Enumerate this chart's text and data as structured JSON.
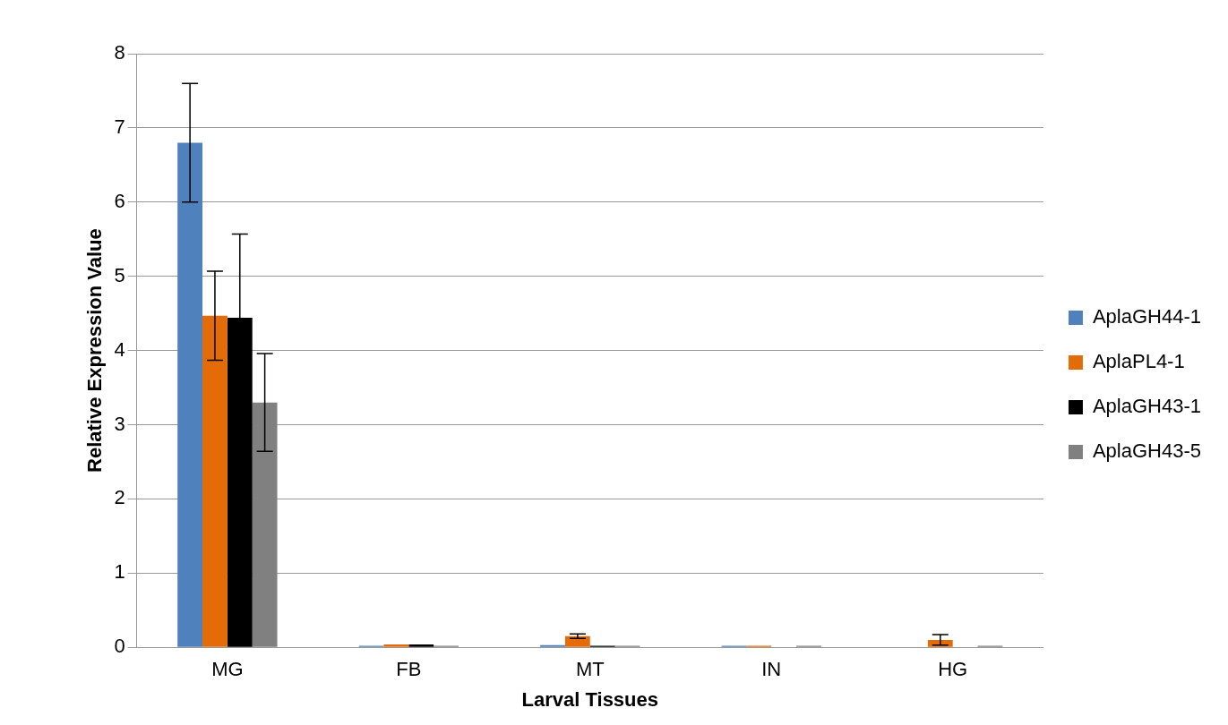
{
  "chart_data": {
    "type": "bar",
    "xlabel": "Larval Tissues",
    "ylabel": "Relative Expression Value",
    "categories": [
      "MG",
      "FB",
      "MT",
      "IN",
      "HG"
    ],
    "series": [
      {
        "name": "AplaGH44-1",
        "color": "#4f81bd",
        "values": [
          6.8,
          0.02,
          0.03,
          0.02,
          0
        ],
        "errors": [
          0.8,
          null,
          null,
          null,
          null
        ]
      },
      {
        "name": "AplaPL4-1",
        "color": "#e36c09",
        "values": [
          4.47,
          0.04,
          0.15,
          0.02,
          0.1
        ],
        "errors": [
          0.6,
          null,
          0.03,
          null,
          0.07
        ]
      },
      {
        "name": "AplaGH43-1",
        "color": "#000000",
        "values": [
          4.44,
          0.04,
          0.02,
          0,
          0
        ],
        "errors": [
          1.13,
          null,
          null,
          null,
          null
        ]
      },
      {
        "name": "AplaGH43-5",
        "color": "#808080",
        "values": [
          3.3,
          0.02,
          0.02,
          0.02,
          0.02
        ],
        "errors": [
          0.66,
          null,
          null,
          null,
          null
        ]
      }
    ],
    "ylim": [
      0,
      8
    ],
    "yticks": [
      0,
      1,
      2,
      3,
      4,
      5,
      6,
      7,
      8
    ],
    "grid": "y",
    "legend": "right"
  }
}
